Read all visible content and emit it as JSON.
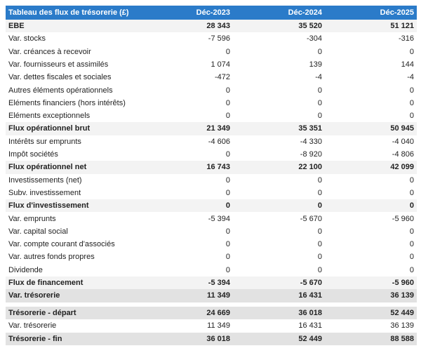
{
  "table": {
    "header": [
      "Tableau des flux de trésorerie (£)",
      "Déc-2023",
      "Déc-2024",
      "Déc-2025"
    ],
    "rows": [
      [
        "EBE",
        "28 343",
        "35 520",
        "51 121"
      ],
      [
        "Var. stocks",
        "-7 596",
        "-304",
        "-316"
      ],
      [
        "Var. créances à recevoir",
        "0",
        "0",
        "0"
      ],
      [
        "Var. fournisseurs et assimilés",
        "1 074",
        "139",
        "144"
      ],
      [
        "Var. dettes fiscales et sociales",
        "-472",
        "-4",
        "-4"
      ],
      [
        "Autres éléments opérationnels",
        "0",
        "0",
        "0"
      ],
      [
        "Eléments financiers (hors intérêts)",
        "0",
        "0",
        "0"
      ],
      [
        "Eléments exceptionnels",
        "0",
        "0",
        "0"
      ],
      [
        "Flux opérationnel brut",
        "21 349",
        "35 351",
        "50 945"
      ],
      [
        "Intérêts sur emprunts",
        "-4 606",
        "-4 330",
        "-4 040"
      ],
      [
        "Impôt sociétés",
        "0",
        "-8 920",
        "-4 806"
      ],
      [
        "Flux opérationnel net",
        "16 743",
        "22 100",
        "42 099"
      ],
      [
        "Investissements (net)",
        "0",
        "0",
        "0"
      ],
      [
        "Subv. investissement",
        "0",
        "0",
        "0"
      ],
      [
        "Flux d'investissement",
        "0",
        "0",
        "0"
      ],
      [
        "Var. emprunts",
        "-5 394",
        "-5 670",
        "-5 960"
      ],
      [
        "Var. capital social",
        "0",
        "0",
        "0"
      ],
      [
        "Var. compte courant d'associés",
        "0",
        "0",
        "0"
      ],
      [
        "Var. autres fonds propres",
        "0",
        "0",
        "0"
      ],
      [
        "Dividende",
        "0",
        "0",
        "0"
      ],
      [
        "Flux de financement",
        "-5 394",
        "-5 670",
        "-5 960"
      ],
      [
        "Var. trésorerie",
        "11 349",
        "16 431",
        "36 139"
      ]
    ]
  },
  "table2": {
    "rows": [
      [
        "Trésorerie - départ",
        "24 669",
        "36 018",
        "52 449"
      ],
      [
        "Var. trésorerie",
        "11 349",
        "16 431",
        "36 139"
      ],
      [
        "Trésorerie - fin",
        "36 018",
        "52 449",
        "88 588"
      ]
    ]
  }
}
